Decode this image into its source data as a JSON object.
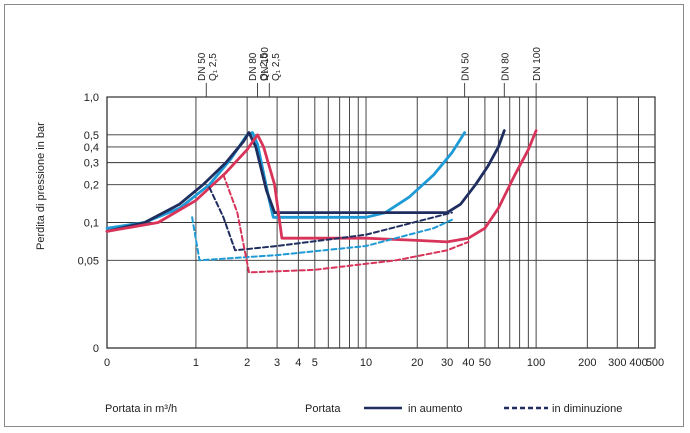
{
  "chart_data": {
    "type": "line",
    "xlabel": "Portata in m³/h",
    "ylabel": "Perdita di pressione in bar",
    "x_scale": "log",
    "y_scale": "log",
    "xlim": [
      0.3,
      500
    ],
    "ylim": [
      0.01,
      1.0
    ],
    "x_ticks": [
      {
        "v": 0.3,
        "label": "0"
      },
      {
        "v": 1,
        "label": "1"
      },
      {
        "v": 2,
        "label": "2"
      },
      {
        "v": 3,
        "label": "3"
      },
      {
        "v": 4,
        "label": "4"
      },
      {
        "v": 5,
        "label": "5"
      },
      {
        "v": 10,
        "label": "10"
      },
      {
        "v": 20,
        "label": "20"
      },
      {
        "v": 30,
        "label": "30"
      },
      {
        "v": 40,
        "label": "40"
      },
      {
        "v": 50,
        "label": "50"
      },
      {
        "v": 100,
        "label": "100"
      },
      {
        "v": 200,
        "label": "200"
      },
      {
        "v": 300,
        "label": "300"
      },
      {
        "v": 400,
        "label": "400"
      },
      {
        "v": 500,
        "label": "500"
      }
    ],
    "x_grid": [
      1,
      2,
      3,
      4,
      5,
      6,
      7,
      8,
      9,
      10,
      20,
      30,
      40,
      50,
      60,
      70,
      80,
      90,
      100,
      200,
      300,
      400,
      500
    ],
    "y_ticks": [
      {
        "v": 0.01,
        "label": "0"
      },
      {
        "v": 0.05,
        "label": "0,05"
      },
      {
        "v": 0.1,
        "label": "0,1"
      },
      {
        "v": 0.2,
        "label": "0,2"
      },
      {
        "v": 0.3,
        "label": "0,3"
      },
      {
        "v": 0.4,
        "label": "0,4"
      },
      {
        "v": 0.5,
        "label": "0,5"
      },
      {
        "v": 1.0,
        "label": "1,0"
      }
    ],
    "y_grid": [
      0.05,
      0.1,
      0.2,
      0.3,
      0.4,
      0.5,
      1.0
    ],
    "top_markers": [
      {
        "x": 1.15,
        "label": "DN 50\nQ₁ 2,5"
      },
      {
        "x": 2.3,
        "label": "DN 80\nQ₁ 2,5"
      },
      {
        "x": 2.7,
        "label": "DN 100\nQ₁ 2,5"
      },
      {
        "x": 38,
        "label": "DN 50"
      },
      {
        "x": 65,
        "label": "DN 80"
      },
      {
        "x": 100,
        "label": "DN 100"
      }
    ],
    "series": [
      {
        "color": "#1e9ad6",
        "dash": false,
        "points": [
          [
            0.3,
            0.09
          ],
          [
            0.5,
            0.1
          ],
          [
            0.8,
            0.13
          ],
          [
            1.2,
            0.2
          ],
          [
            1.6,
            0.32
          ],
          [
            2.0,
            0.5
          ],
          [
            2.15,
            0.52
          ],
          [
            2.3,
            0.42
          ],
          [
            2.7,
            0.15
          ],
          [
            2.85,
            0.11
          ],
          [
            5,
            0.11
          ],
          [
            10,
            0.11
          ],
          [
            13,
            0.12
          ],
          [
            18,
            0.16
          ],
          [
            25,
            0.24
          ],
          [
            32,
            0.36
          ],
          [
            38,
            0.52
          ]
        ]
      },
      {
        "color": "#1f2e5e",
        "dash": false,
        "points": [
          [
            0.3,
            0.085
          ],
          [
            0.5,
            0.1
          ],
          [
            0.8,
            0.14
          ],
          [
            1.1,
            0.2
          ],
          [
            1.5,
            0.3
          ],
          [
            1.9,
            0.44
          ],
          [
            2.05,
            0.52
          ],
          [
            2.25,
            0.4
          ],
          [
            2.6,
            0.18
          ],
          [
            2.9,
            0.12
          ],
          [
            5,
            0.12
          ],
          [
            10,
            0.12
          ],
          [
            20,
            0.12
          ],
          [
            30,
            0.12
          ],
          [
            36,
            0.14
          ],
          [
            44,
            0.2
          ],
          [
            52,
            0.28
          ],
          [
            60,
            0.4
          ],
          [
            65,
            0.54
          ]
        ]
      },
      {
        "color": "#d8345a",
        "dash": false,
        "points": [
          [
            0.3,
            0.085
          ],
          [
            0.6,
            0.1
          ],
          [
            1.0,
            0.15
          ],
          [
            1.5,
            0.25
          ],
          [
            2.0,
            0.38
          ],
          [
            2.3,
            0.5
          ],
          [
            2.5,
            0.4
          ],
          [
            2.9,
            0.2
          ],
          [
            3.2,
            0.075
          ],
          [
            5,
            0.075
          ],
          [
            10,
            0.075
          ],
          [
            20,
            0.072
          ],
          [
            30,
            0.07
          ],
          [
            40,
            0.075
          ],
          [
            50,
            0.09
          ],
          [
            60,
            0.13
          ],
          [
            75,
            0.24
          ],
          [
            90,
            0.38
          ],
          [
            100,
            0.54
          ]
        ]
      },
      {
        "color": "#1e9ad6",
        "dash": true,
        "points": [
          [
            0.95,
            0.11
          ],
          [
            1.05,
            0.05
          ],
          [
            3,
            0.055
          ],
          [
            10,
            0.065
          ],
          [
            25,
            0.09
          ],
          [
            32,
            0.105
          ]
        ]
      },
      {
        "color": "#1f2e5e",
        "dash": true,
        "points": [
          [
            1.2,
            0.19
          ],
          [
            1.45,
            0.11
          ],
          [
            1.7,
            0.06
          ],
          [
            3,
            0.065
          ],
          [
            10,
            0.08
          ],
          [
            25,
            0.11
          ],
          [
            32,
            0.12
          ]
        ]
      },
      {
        "color": "#d8345a",
        "dash": true,
        "points": [
          [
            1.45,
            0.24
          ],
          [
            1.75,
            0.12
          ],
          [
            2.05,
            0.04
          ],
          [
            5,
            0.042
          ],
          [
            15,
            0.05
          ],
          [
            30,
            0.06
          ],
          [
            40,
            0.07
          ]
        ]
      }
    ],
    "legend": {
      "prefix": "Portata",
      "increasing": "in aumento",
      "decreasing": "in diminuzione"
    }
  }
}
